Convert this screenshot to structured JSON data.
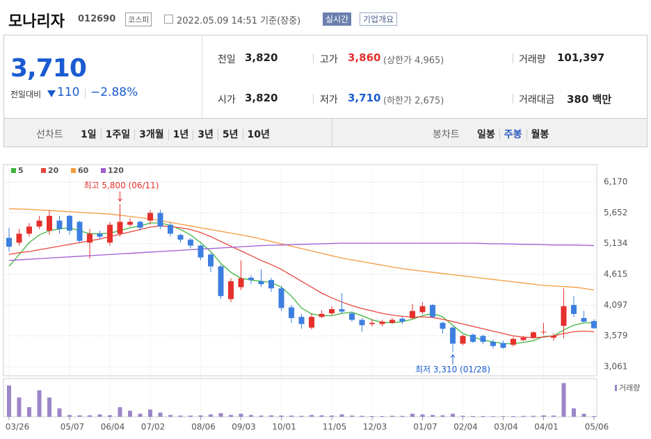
{
  "header": {
    "name": "모나리자",
    "code": "012690",
    "market": "코스피",
    "timestamp": "2022.05.09 14:51 기준(장중)",
    "realtime": "실시간",
    "company": "기업개요"
  },
  "quote": {
    "price": "3,710",
    "change_label": "전일대비",
    "change": "110",
    "change_rate": "−2.88%",
    "prev_label": "전일",
    "prev": "3,820",
    "open_label": "시가",
    "open": "3,820",
    "high_label": "고가",
    "high": "3,860",
    "upper_limit": "(상한가 4,965)",
    "low_label": "저가",
    "low": "3,710",
    "lower_limit": "(하한가 2,675)",
    "volume_label": "거래량",
    "volume": "101,397",
    "amount_label": "거래대금",
    "amount": "380 백만"
  },
  "toolbar": {
    "line_label": "선차트",
    "periods": [
      "1일",
      "1주일",
      "3개월",
      "1년",
      "3년",
      "5년",
      "10년"
    ],
    "candle_label": "봉차트",
    "candle_types": [
      "일봉",
      "주봉",
      "월봉"
    ]
  },
  "chart_data": {
    "type": "candlestick",
    "categories": [
      "03/26",
      null,
      null,
      null,
      null,
      null,
      "05/07",
      null,
      null,
      null,
      "06/04",
      null,
      null,
      null,
      "07/02",
      null,
      null,
      null,
      null,
      "08/06",
      null,
      null,
      null,
      "09/03",
      null,
      null,
      null,
      "10/01",
      null,
      null,
      null,
      null,
      "11/05",
      null,
      null,
      null,
      "12/03",
      null,
      null,
      null,
      null,
      "01/07",
      null,
      null,
      null,
      "02/04",
      null,
      null,
      null,
      "03/04",
      null,
      null,
      null,
      "04/01",
      null,
      null,
      null,
      null,
      "05/06"
    ],
    "open": [
      5230,
      5150,
      5300,
      5420,
      5350,
      5520,
      5600,
      5500,
      5150,
      5300,
      5150,
      5300,
      5450,
      5500,
      5520,
      5650,
      5450,
      5280,
      5200,
      5100,
      4950,
      4750,
      4200,
      4400,
      4560,
      4500,
      4520,
      4380,
      4060,
      3900,
      3720,
      3900,
      3960,
      4030,
      3960,
      3850,
      3780,
      3780,
      3800,
      3870,
      3880,
      3980,
      4100,
      3800,
      3720,
      3450,
      3600,
      3580,
      3480,
      3460,
      3430,
      3510,
      3550,
      3650,
      3550,
      3750,
      4100,
      3880,
      3830
    ],
    "high": [
      5400,
      5380,
      5480,
      5600,
      5700,
      5600,
      5620,
      5520,
      5380,
      5350,
      5500,
      5800,
      5560,
      5520,
      5700,
      5700,
      5480,
      5300,
      5230,
      5120,
      4980,
      4780,
      4550,
      4850,
      4600,
      4700,
      4560,
      4420,
      4100,
      3950,
      3960,
      4010,
      4080,
      4300,
      3990,
      3880,
      3860,
      3850,
      3880,
      3900,
      4120,
      4150,
      4120,
      3820,
      3740,
      3600,
      3620,
      3600,
      3520,
      3500,
      3560,
      3580,
      3660,
      3800,
      3620,
      4380,
      4250,
      4000,
      3860
    ],
    "low": [
      5000,
      5100,
      5250,
      5380,
      5280,
      5300,
      5280,
      5150,
      4880,
      5200,
      5100,
      5250,
      5420,
      5350,
      5450,
      5380,
      5250,
      5150,
      5050,
      4850,
      4650,
      4200,
      4150,
      4350,
      4450,
      4400,
      4320,
      4000,
      3800,
      3700,
      3690,
      3880,
      3920,
      3950,
      3820,
      3650,
      3740,
      3740,
      3780,
      3780,
      3860,
      3950,
      3880,
      3620,
      3310,
      3420,
      3460,
      3440,
      3370,
      3360,
      3400,
      3490,
      3530,
      3600,
      3500,
      3540,
      3900,
      3800,
      3700
    ],
    "close": [
      5080,
      5300,
      5420,
      5520,
      5600,
      5380,
      5350,
      5180,
      5300,
      5250,
      5450,
      5500,
      5500,
      5400,
      5650,
      5420,
      5300,
      5200,
      5100,
      4900,
      4750,
      4250,
      4500,
      4550,
      4520,
      4450,
      4380,
      4050,
      3880,
      3780,
      3900,
      3950,
      4030,
      3990,
      3850,
      3760,
      3800,
      3820,
      3850,
      3820,
      4000,
      4080,
      3900,
      3700,
      3450,
      3580,
      3480,
      3480,
      3410,
      3380,
      3530,
      3550,
      3640,
      3650,
      3580,
      4080,
      3950,
      3820,
      3710
    ],
    "volume": [
      2600000,
      1600000,
      800000,
      2200000,
      1600000,
      700000,
      150000,
      120000,
      120000,
      200000,
      130000,
      800000,
      500000,
      250000,
      600000,
      350000,
      150000,
      100000,
      100000,
      120000,
      200000,
      300000,
      150000,
      250000,
      150000,
      100000,
      120000,
      100000,
      100000,
      80000,
      150000,
      120000,
      100000,
      200000,
      100000,
      80000,
      60000,
      60000,
      80000,
      70000,
      250000,
      200000,
      150000,
      120000,
      250000,
      80000,
      60000,
      60000,
      50000,
      50000,
      60000,
      70000,
      80000,
      120000,
      100000,
      2800000,
      700000,
      250000,
      60000
    ],
    "volume_label": "거래량",
    "volume_ylim": [
      0,
      3000000
    ],
    "up_color": "#e5302c",
    "down_color": "#3d7fe0",
    "moving_averages": [
      {
        "name": "5",
        "color": "#3cb43c",
        "values": [
          4750,
          4950,
          5150,
          5280,
          5350,
          5380,
          5400,
          5350,
          5300,
          5300,
          5310,
          5350,
          5400,
          5430,
          5480,
          5480,
          5440,
          5370,
          5280,
          5150,
          5000,
          4800,
          4650,
          4550,
          4520,
          4500,
          4480,
          4400,
          4250,
          4050,
          3950,
          3920,
          3920,
          3960,
          3980,
          3920,
          3850,
          3810,
          3800,
          3820,
          3860,
          3920,
          3960,
          3900,
          3760,
          3620,
          3560,
          3510,
          3480,
          3450,
          3450,
          3470,
          3500,
          3570,
          3580,
          3680,
          3760,
          3800,
          3800
        ]
      },
      {
        "name": "20",
        "color": "#e8463c",
        "values": [
          4950,
          4980,
          5000,
          5030,
          5060,
          5090,
          5120,
          5150,
          5180,
          5210,
          5250,
          5290,
          5330,
          5370,
          5410,
          5430,
          5420,
          5400,
          5370,
          5320,
          5250,
          5170,
          5090,
          5010,
          4930,
          4850,
          4780,
          4700,
          4600,
          4500,
          4400,
          4300,
          4220,
          4150,
          4090,
          4040,
          4000,
          3960,
          3930,
          3910,
          3900,
          3900,
          3890,
          3860,
          3820,
          3780,
          3740,
          3700,
          3660,
          3620,
          3580,
          3560,
          3550,
          3560,
          3580,
          3620,
          3650,
          3660,
          3650
        ]
      },
      {
        "name": "60",
        "color": "#f59a3c",
        "values": [
          5720,
          5715,
          5710,
          5700,
          5690,
          5680,
          5670,
          5660,
          5650,
          5640,
          5630,
          5610,
          5590,
          5570,
          5550,
          5520,
          5490,
          5460,
          5430,
          5400,
          5370,
          5340,
          5310,
          5280,
          5250,
          5210,
          5170,
          5130,
          5090,
          5050,
          5010,
          4970,
          4930,
          4890,
          4860,
          4830,
          4800,
          4770,
          4740,
          4710,
          4690,
          4670,
          4650,
          4630,
          4610,
          4590,
          4570,
          4550,
          4530,
          4510,
          4490,
          4470,
          4450,
          4430,
          4420,
          4410,
          4400,
          4380,
          4350
        ]
      },
      {
        "name": "120",
        "color": "#a05ad2",
        "values": [
          4850,
          4860,
          4870,
          4880,
          4890,
          4900,
          4910,
          4920,
          4930,
          4940,
          4950,
          4960,
          4970,
          4980,
          4990,
          5000,
          5010,
          5020,
          5030,
          5040,
          5050,
          5060,
          5070,
          5080,
          5090,
          5100,
          5105,
          5110,
          5115,
          5120,
          5125,
          5130,
          5135,
          5140,
          5140,
          5140,
          5140,
          5140,
          5140,
          5140,
          5140,
          5140,
          5140,
          5140,
          5140,
          5140,
          5140,
          5135,
          5130,
          5130,
          5125,
          5120,
          5120,
          5115,
          5110,
          5110,
          5110,
          5105,
          5100
        ]
      }
    ],
    "ylim": [
      3061,
      6170
    ],
    "yticks": [
      {
        "value": 3061,
        "label": "3,061"
      },
      {
        "value": 3579,
        "label": "3,579"
      },
      {
        "value": 4097,
        "label": "4,097"
      },
      {
        "value": 4615,
        "label": "4,615"
      },
      {
        "value": 5134,
        "label": "5,134"
      },
      {
        "value": 5652,
        "label": "5,652"
      },
      {
        "value": 6170,
        "label": "6,170"
      }
    ],
    "annotations": [
      {
        "text": "최고 5,800 (06/11)"
      },
      {
        "text": "최저 3,310 (01/28)"
      }
    ]
  }
}
